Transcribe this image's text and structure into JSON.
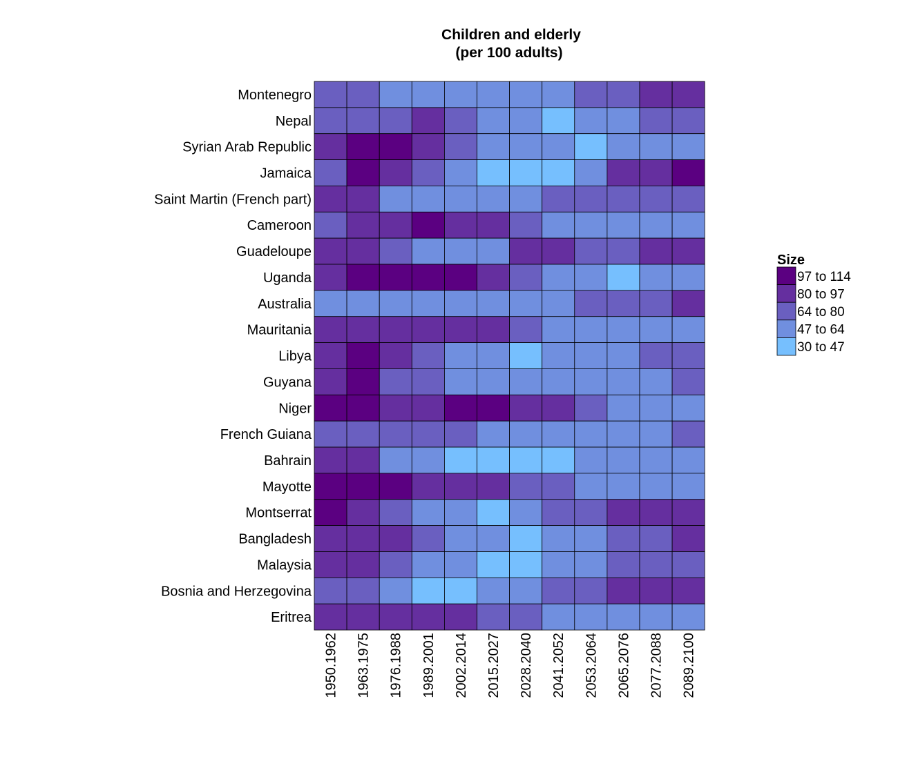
{
  "chart_data": {
    "type": "heatmap",
    "title": "Children and elderly",
    "subtitle": "(per 100 adults)",
    "legend": {
      "title": "Size",
      "placement": "right",
      "bins": [
        {
          "label": "97 to 114",
          "color": "#5b0081"
        },
        {
          "label": "80 to 97",
          "color": "#652f9f"
        },
        {
          "label": "64 to 80",
          "color": "#6a5fc0"
        },
        {
          "label": "47 to 64",
          "color": "#708fdf"
        },
        {
          "label": "30 to 47",
          "color": "#76bffe"
        }
      ]
    },
    "columns": [
      "1950.1962",
      "1963.1975",
      "1976.1988",
      "1989.2001",
      "2002.2014",
      "2015.2027",
      "2028.2040",
      "2041.2052",
      "2053.2064",
      "2065.2076",
      "2077.2088",
      "2089.2100"
    ],
    "rows": [
      "Montenegro",
      "Nepal",
      "Syrian Arab Republic",
      "Jamaica",
      "Saint Martin (French part)",
      "Cameroon",
      "Guadeloupe",
      "Uganda",
      "Australia",
      "Mauritania",
      "Libya",
      "Guyana",
      "Niger",
      "French Guiana",
      "Bahrain",
      "Mayotte",
      "Montserrat",
      "Bangladesh",
      "Malaysia",
      "Bosnia and Herzegovina",
      "Eritrea"
    ],
    "bin_scale": "0 = 97 to 114, 1 = 80 to 97, 2 = 64 to 80, 3 = 47 to 64, 4 = 30 to 47",
    "cell_bins": [
      [
        2,
        2,
        3,
        3,
        3,
        3,
        3,
        3,
        2,
        2,
        1,
        1
      ],
      [
        2,
        2,
        2,
        1,
        2,
        3,
        3,
        4,
        3,
        3,
        2,
        2
      ],
      [
        1,
        0,
        0,
        1,
        2,
        3,
        3,
        3,
        4,
        3,
        3,
        3
      ],
      [
        2,
        0,
        1,
        2,
        3,
        4,
        4,
        4,
        3,
        1,
        1,
        0
      ],
      [
        1,
        1,
        3,
        3,
        3,
        3,
        3,
        2,
        2,
        2,
        2,
        2
      ],
      [
        2,
        1,
        1,
        0,
        1,
        1,
        2,
        3,
        3,
        3,
        3,
        3
      ],
      [
        1,
        1,
        2,
        3,
        3,
        3,
        1,
        1,
        2,
        2,
        1,
        1
      ],
      [
        1,
        0,
        0,
        0,
        0,
        1,
        2,
        3,
        3,
        4,
        3,
        3
      ],
      [
        3,
        3,
        3,
        3,
        3,
        3,
        3,
        3,
        2,
        2,
        2,
        1
      ],
      [
        1,
        1,
        1,
        1,
        1,
        1,
        2,
        3,
        3,
        3,
        3,
        3
      ],
      [
        1,
        0,
        1,
        2,
        3,
        3,
        4,
        3,
        3,
        3,
        2,
        2
      ],
      [
        1,
        0,
        2,
        2,
        3,
        3,
        3,
        3,
        3,
        3,
        3,
        2
      ],
      [
        0,
        0,
        1,
        1,
        0,
        0,
        1,
        1,
        2,
        3,
        3,
        3
      ],
      [
        2,
        2,
        2,
        2,
        2,
        3,
        3,
        3,
        3,
        3,
        3,
        2
      ],
      [
        1,
        1,
        3,
        3,
        4,
        4,
        4,
        4,
        3,
        3,
        3,
        3
      ],
      [
        0,
        0,
        0,
        1,
        1,
        1,
        2,
        2,
        3,
        3,
        3,
        3
      ],
      [
        0,
        1,
        2,
        3,
        3,
        4,
        3,
        2,
        2,
        1,
        1,
        1
      ],
      [
        1,
        1,
        1,
        2,
        3,
        3,
        4,
        3,
        3,
        2,
        2,
        1
      ],
      [
        1,
        1,
        2,
        3,
        3,
        4,
        4,
        3,
        3,
        2,
        2,
        2
      ],
      [
        2,
        2,
        3,
        4,
        4,
        3,
        3,
        2,
        2,
        1,
        1,
        1
      ],
      [
        1,
        1,
        1,
        1,
        1,
        2,
        2,
        3,
        3,
        3,
        3,
        3
      ]
    ]
  }
}
